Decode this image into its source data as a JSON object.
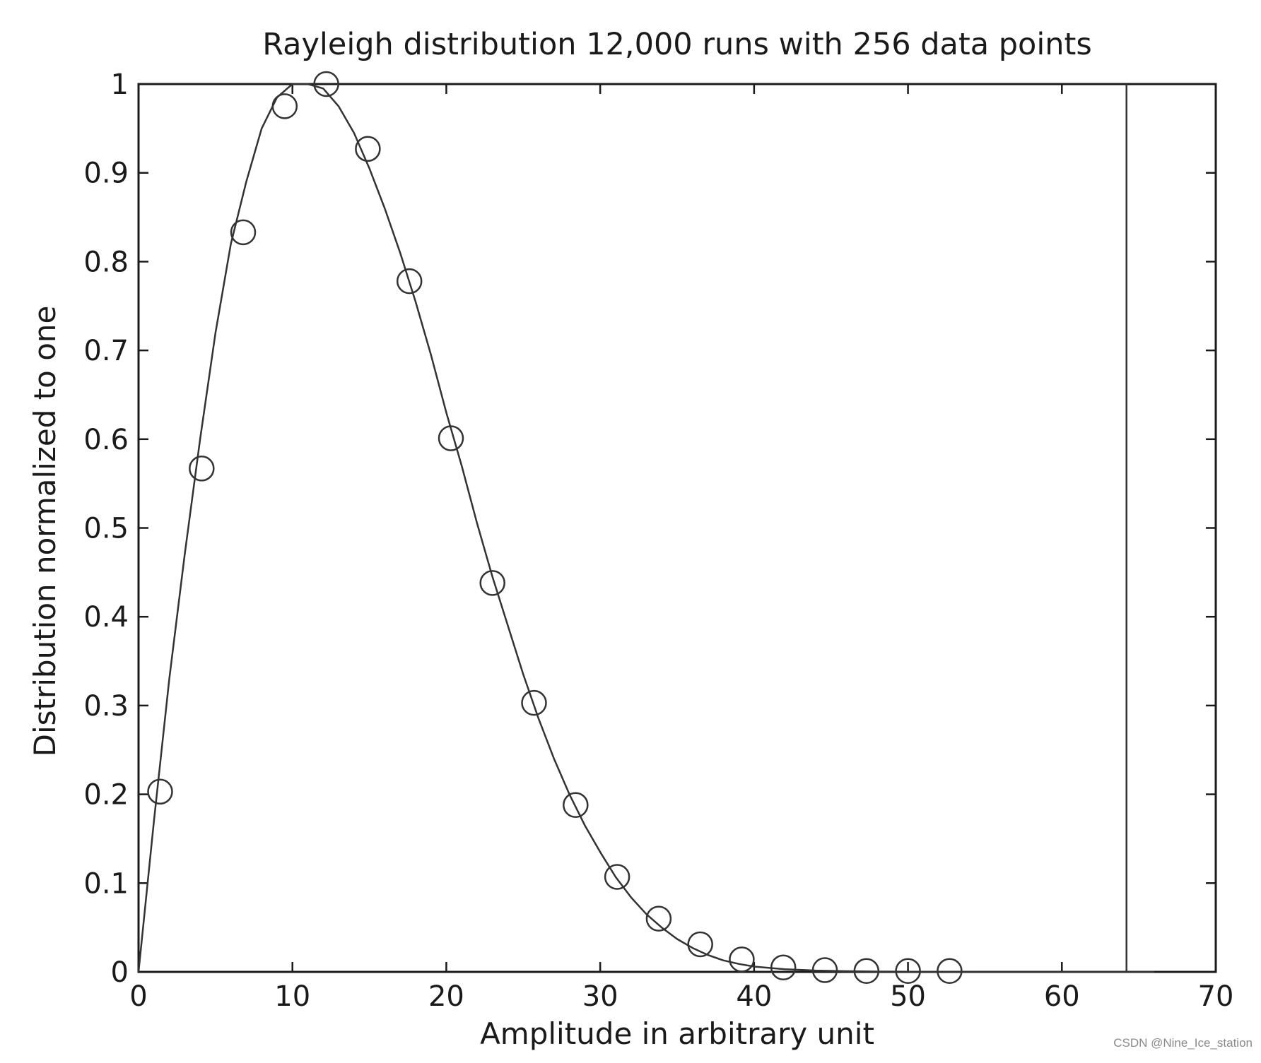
{
  "chart_data": {
    "type": "line",
    "title": "Rayleigh distribution 12,000 runs with 256 data points",
    "xlabel": "Amplitude in arbitrary unit",
    "ylabel": "Distribution normalized to one",
    "xlim": [
      0,
      70
    ],
    "ylim": [
      0,
      1
    ],
    "xticks": [
      "0",
      "10",
      "20",
      "30",
      "40",
      "50",
      "60",
      "70"
    ],
    "yticks": [
      "0",
      "0.1",
      "0.2",
      "0.3",
      "0.4",
      "0.5",
      "0.6",
      "0.7",
      "0.8",
      "0.9",
      "1"
    ],
    "grid": false,
    "curve": {
      "style": "solid line",
      "x": [
        0,
        1,
        2,
        3,
        4,
        5,
        6,
        7,
        8,
        9,
        10,
        11,
        12,
        13,
        14,
        15,
        16,
        17,
        18,
        19,
        20,
        21,
        22,
        23,
        24,
        25,
        26,
        27,
        28,
        29,
        30,
        31,
        32,
        33,
        34,
        35,
        36,
        37,
        38,
        39,
        40,
        42,
        44,
        46,
        48,
        50,
        55,
        60,
        64,
        66
      ],
      "y": [
        0,
        0.17,
        0.33,
        0.47,
        0.6,
        0.72,
        0.82,
        0.89,
        0.95,
        0.985,
        1.0,
        1.0,
        0.995,
        0.975,
        0.945,
        0.905,
        0.86,
        0.81,
        0.755,
        0.695,
        0.63,
        0.57,
        0.505,
        0.445,
        0.39,
        0.335,
        0.285,
        0.24,
        0.2,
        0.165,
        0.135,
        0.107,
        0.084,
        0.065,
        0.05,
        0.037,
        0.027,
        0.019,
        0.013,
        0.009,
        0.006,
        0.003,
        0.0015,
        0.0008,
        0.0004,
        0.0002,
        0.0,
        0.0,
        0.0,
        0.0
      ]
    },
    "markers": {
      "style": "open circle",
      "x": [
        1.4,
        4.1,
        6.8,
        9.5,
        12.2,
        14.9,
        17.6,
        20.3,
        23.0,
        25.7,
        28.4,
        31.1,
        33.8,
        36.5,
        39.2,
        41.9,
        44.6,
        47.3,
        50.0,
        52.7
      ],
      "y": [
        0.203,
        0.567,
        0.833,
        0.975,
        1.0,
        0.927,
        0.778,
        0.601,
        0.438,
        0.303,
        0.188,
        0.107,
        0.06,
        0.031,
        0.014,
        0.005,
        0.002,
        0.001,
        0.001,
        0.001
      ]
    },
    "vertical_line": {
      "x": 64.2
    }
  },
  "watermark": "CSDN @Nine_Ice_station",
  "colors": {
    "line": "#333333",
    "axis": "#1a1a1a",
    "text": "#1a1a1a"
  }
}
